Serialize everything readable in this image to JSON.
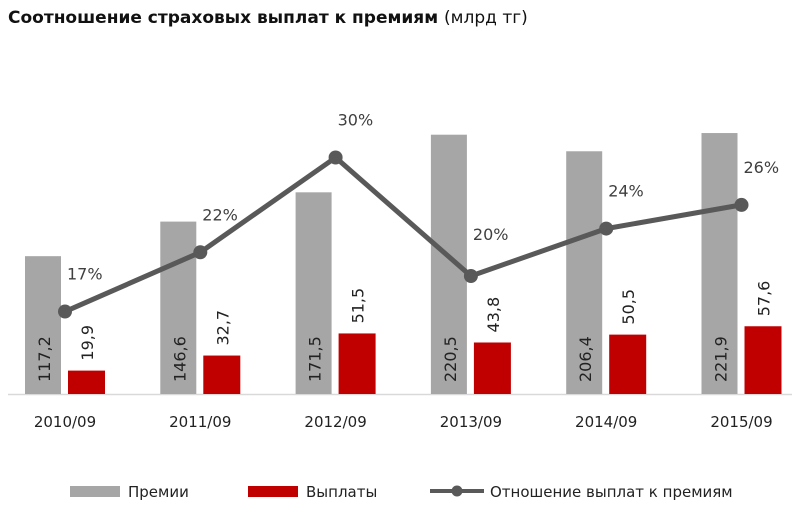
{
  "chart_data": {
    "type": "bar",
    "title": "Соотношение страховых выплат к премиям",
    "title_unit": "(млрд тг)",
    "categories": [
      "2010/09",
      "2011/09",
      "2012/09",
      "2013/09",
      "2014/09",
      "2015/09"
    ],
    "series": [
      {
        "name": "Премии",
        "type": "bar",
        "color": "#a6a6a6",
        "values": [
          117.2,
          146.6,
          171.5,
          220.5,
          206.4,
          221.9
        ],
        "labels": [
          "117,2",
          "146,6",
          "171,5",
          "220,5",
          "206,4",
          "221,9"
        ]
      },
      {
        "name": "Выплаты",
        "type": "bar",
        "color": "#c00000",
        "values": [
          19.9,
          32.7,
          51.5,
          43.8,
          50.5,
          57.6
        ],
        "labels": [
          "19,9",
          "32,7",
          "51,5",
          "43,8",
          "50,5",
          "57,6"
        ]
      },
      {
        "name": "Отношение выплат к премиям",
        "type": "line",
        "color": "#595959",
        "axis": "secondary",
        "values": [
          17,
          22,
          30,
          20,
          24,
          26
        ],
        "labels": [
          "17%",
          "22%",
          "30%",
          "20%",
          "24%",
          "26%"
        ]
      }
    ],
    "ylim": [
      0,
      225
    ],
    "y2lim": [
      0,
      43
    ],
    "grid": false,
    "legend": "bottom"
  }
}
